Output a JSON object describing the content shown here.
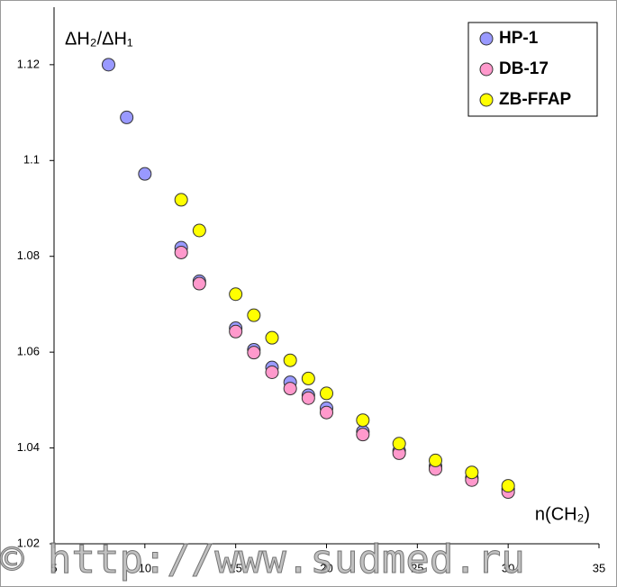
{
  "chart_data": {
    "type": "scatter",
    "y_label": "ΔH₂/ΔH₁",
    "x_label": "n(CH₂)",
    "watermark": "© http://www.sudmed.ru",
    "xlim": [
      5,
      35
    ],
    "xticks": [
      5,
      10,
      15,
      20,
      25,
      30,
      35
    ],
    "ylim": [
      1.02,
      1.132
    ],
    "yticks": [
      1.02,
      1.04,
      1.06,
      1.08,
      1.1,
      1.12
    ],
    "legend": "top-right",
    "series": [
      {
        "name": "HP-1",
        "color": "#9999ff",
        "x": [
          8,
          9,
          10,
          12,
          13,
          15,
          16,
          17,
          18,
          19,
          20,
          22,
          24,
          26,
          28,
          30
        ],
        "values": [
          1.12,
          1.109,
          1.0972,
          1.0818,
          1.0748,
          1.065,
          1.0605,
          1.0568,
          1.0537,
          1.051,
          1.0483,
          1.0434,
          1.0394,
          1.0362,
          1.0338,
          1.0314
        ]
      },
      {
        "name": "DB-17",
        "color": "#ff99cc",
        "x": [
          12,
          13,
          15,
          16,
          17,
          18,
          19,
          20,
          22,
          24,
          26,
          28,
          30
        ],
        "values": [
          1.0808,
          1.0743,
          1.0643,
          1.0599,
          1.0558,
          1.0524,
          1.0504,
          1.0474,
          1.0428,
          1.0389,
          1.0356,
          1.0333,
          1.0308
        ]
      },
      {
        "name": "ZB-FFAP",
        "color": "#ffff00",
        "x": [
          12,
          13,
          15,
          16,
          17,
          18,
          19,
          20,
          22,
          24,
          26,
          28,
          30
        ],
        "values": [
          1.0918,
          1.0854,
          1.0721,
          1.0677,
          1.063,
          1.0583,
          1.0545,
          1.0514,
          1.0458,
          1.0409,
          1.0374,
          1.0349,
          1.0321
        ]
      }
    ]
  }
}
